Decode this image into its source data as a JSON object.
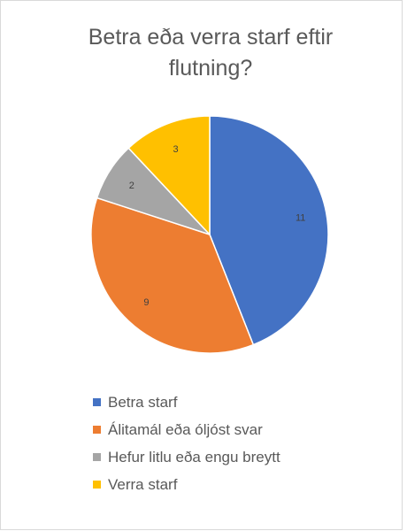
{
  "chart_data": {
    "type": "pie",
    "title_lines": [
      "Betra eða verra starf eftir",
      "flutning?"
    ],
    "categories": [
      "Betra starf",
      "Álitamál eða óljóst svar",
      "Hefur litlu eða engu breytt",
      "Verra starf"
    ],
    "values": [
      11,
      9,
      2,
      3
    ],
    "colors": [
      "#4472c4",
      "#ed7d31",
      "#a5a5a5",
      "#ffc000"
    ],
    "data_labels": [
      "11",
      "9",
      "2",
      "3"
    ],
    "start_angle_deg": 0,
    "direction": "clockwise",
    "legend_position": "bottom"
  }
}
